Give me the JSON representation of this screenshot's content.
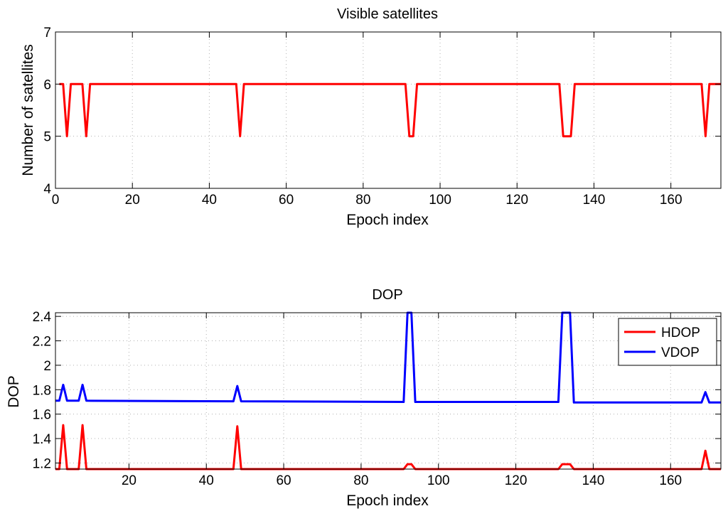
{
  "chart_data": [
    {
      "type": "line",
      "title": "Visible satellites",
      "xlabel": "Epoch index",
      "ylabel": "Number of satellites",
      "xlim": [
        0,
        173
      ],
      "ylim": [
        4,
        7
      ],
      "xticks": [
        "0",
        "20",
        "40",
        "60",
        "80",
        "100",
        "120",
        "140",
        "160"
      ],
      "yticks": [
        "4",
        "5",
        "6",
        "7"
      ],
      "grid": true,
      "legend": null,
      "series": [
        {
          "color": "#ff0000",
          "points": [
            [
              1,
              6
            ],
            [
              2,
              6
            ],
            [
              3,
              5
            ],
            [
              4,
              6
            ],
            [
              7,
              6
            ],
            [
              8,
              5
            ],
            [
              9,
              6
            ],
            [
              47,
              6
            ],
            [
              48,
              5
            ],
            [
              49,
              6
            ],
            [
              91,
              6
            ],
            [
              92,
              5
            ],
            [
              93,
              5
            ],
            [
              94,
              6
            ],
            [
              131,
              6
            ],
            [
              132,
              5
            ],
            [
              134,
              5
            ],
            [
              135,
              6
            ],
            [
              168,
              6
            ],
            [
              169,
              5
            ],
            [
              170,
              6
            ],
            [
              173,
              6
            ]
          ]
        }
      ]
    },
    {
      "type": "line",
      "title": "DOP",
      "xlabel": "Epoch index",
      "ylabel": "DOP",
      "xlim": [
        1,
        173
      ],
      "ylim": [
        1.15,
        2.43
      ],
      "xticks": [
        "20",
        "40",
        "60",
        "80",
        "100",
        "120",
        "140",
        "160"
      ],
      "yticks": [
        "1.2",
        "1.4",
        "1.6",
        "1.8",
        "2",
        "2.2",
        "2.4"
      ],
      "grid": true,
      "legend": "top-right",
      "series": [
        {
          "name": "HDOP",
          "color": "#ff0000",
          "points": [
            [
              1,
              1.15
            ],
            [
              2,
              1.15
            ],
            [
              3,
              1.51
            ],
            [
              4,
              1.15
            ],
            [
              7,
              1.15
            ],
            [
              8,
              1.51
            ],
            [
              9,
              1.15
            ],
            [
              47,
              1.15
            ],
            [
              48,
              1.5
            ],
            [
              49,
              1.15
            ],
            [
              91,
              1.15
            ],
            [
              92,
              1.19
            ],
            [
              93,
              1.19
            ],
            [
              94,
              1.15
            ],
            [
              131,
              1.15
            ],
            [
              132,
              1.19
            ],
            [
              134,
              1.19
            ],
            [
              135,
              1.15
            ],
            [
              168,
              1.15
            ],
            [
              169,
              1.3
            ],
            [
              170,
              1.15
            ],
            [
              173,
              1.15
            ]
          ]
        },
        {
          "name": "VDOP",
          "color": "#0000ff",
          "points": [
            [
              1,
              1.71
            ],
            [
              2,
              1.71
            ],
            [
              3,
              1.84
            ],
            [
              4,
              1.71
            ],
            [
              7,
              1.71
            ],
            [
              8,
              1.84
            ],
            [
              9,
              1.71
            ],
            [
              47,
              1.705
            ],
            [
              48,
              1.83
            ],
            [
              49,
              1.705
            ],
            [
              91,
              1.7
            ],
            [
              92,
              2.43
            ],
            [
              93,
              2.43
            ],
            [
              94,
              1.7
            ],
            [
              131,
              1.7
            ],
            [
              132,
              2.43
            ],
            [
              134,
              2.43
            ],
            [
              135,
              1.695
            ],
            [
              168,
              1.695
            ],
            [
              169,
              1.78
            ],
            [
              170,
              1.695
            ],
            [
              173,
              1.695
            ]
          ]
        }
      ]
    }
  ]
}
